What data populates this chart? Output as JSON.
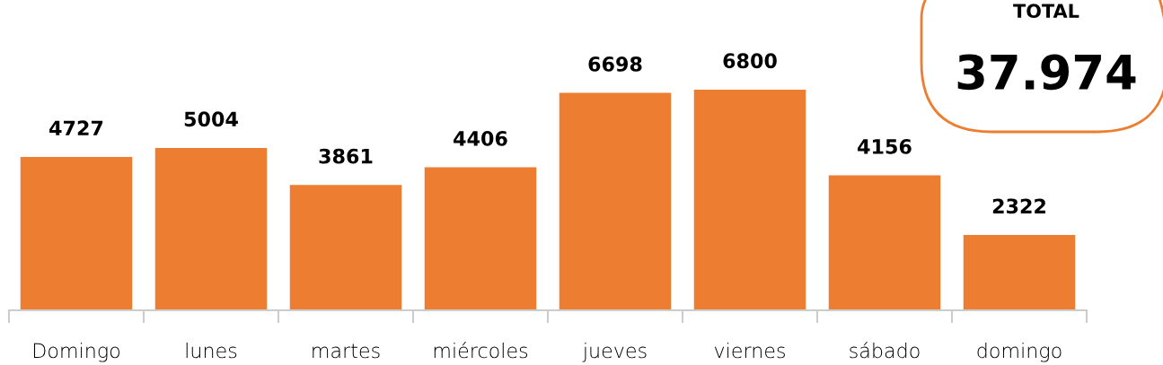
{
  "chart_data": {
    "type": "bar",
    "categories": [
      "Domingo",
      "lunes",
      "martes",
      "miércoles",
      "jueves",
      "viernes",
      "sábado",
      "domingo"
    ],
    "values": [
      4727,
      5004,
      3861,
      4406,
      6698,
      6800,
      4156,
      2322
    ],
    "color": "#ed7d31",
    "data_labels": true,
    "grid": false,
    "legend": false,
    "annotations": [
      "TOTAL",
      "37.974"
    ]
  }
}
